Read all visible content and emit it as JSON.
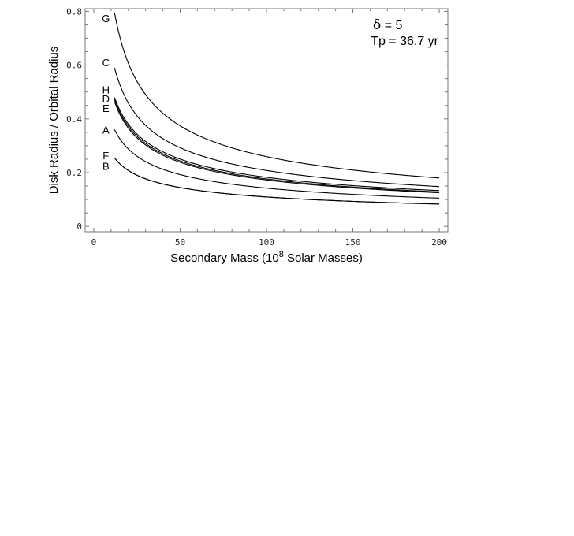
{
  "chart_data": {
    "type": "line",
    "title": "",
    "xlabel_parts": [
      "Secondary Mass (10",
      "8",
      " Solar Masses)"
    ],
    "ylabel": "Disk Radius / Orbital Radius",
    "xlim": [
      -5,
      205
    ],
    "ylim": [
      -0.02,
      0.81
    ],
    "xticks": [
      0,
      50,
      100,
      150,
      200
    ],
    "xtick_labels": [
      "0",
      "50",
      "100",
      "150",
      "200"
    ],
    "yticks": [
      0,
      0.2,
      0.4,
      0.6,
      0.8
    ],
    "ytick_labels": [
      "0",
      "0.2",
      "0.4",
      "0.6",
      "0.8"
    ],
    "grid": false,
    "annotation": {
      "delta_symbol": "δ",
      "delta_text": " = 5",
      "period_text": "Tp = 36.7 yr"
    },
    "series": [
      {
        "name": "G",
        "x0": 12,
        "y0": 0.795,
        "x1": 200,
        "y1": 0.18
      },
      {
        "name": "C",
        "x0": 12,
        "y0": 0.59,
        "x1": 200,
        "y1": 0.148
      },
      {
        "name": "H",
        "x0": 12,
        "y0": 0.48,
        "x1": 200,
        "y1": 0.133
      },
      {
        "name": "D",
        "x0": 12,
        "y0": 0.472,
        "x1": 200,
        "y1": 0.128
      },
      {
        "name": "E",
        "x0": 12,
        "y0": 0.464,
        "x1": 200,
        "y1": 0.125
      },
      {
        "name": "A",
        "x0": 12,
        "y0": 0.36,
        "x1": 200,
        "y1": 0.105
      },
      {
        "name": "F",
        "x0": 12,
        "y0": 0.255,
        "x1": 200,
        "y1": 0.083
      },
      {
        "name": "B",
        "x0": 12,
        "y0": 0.255,
        "x1": 200,
        "y1": 0.083
      }
    ],
    "labels_y": {
      "G": 0.775,
      "C": 0.61,
      "H": 0.51,
      "D": 0.475,
      "E": 0.44,
      "A": 0.36,
      "F": 0.265,
      "B": 0.225
    }
  }
}
